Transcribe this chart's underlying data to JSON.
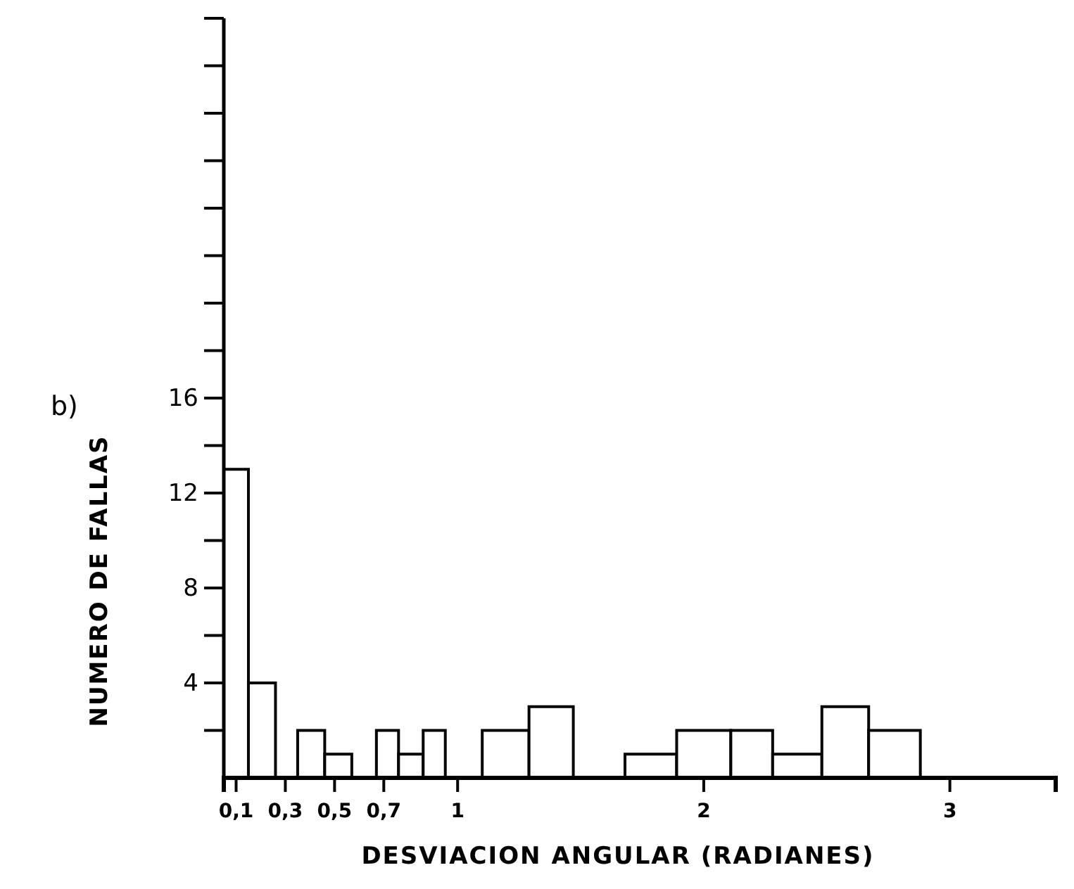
{
  "chart_data": {
    "type": "histogram",
    "xlabel": "DESVIACION ANGULAR (RADIANES)",
    "ylabel": "NUMERO DE FALLAS",
    "annotations": [
      "b)"
    ],
    "bins": [
      0.05,
      0.15,
      0.26,
      0.35,
      0.46,
      0.57,
      0.67,
      0.76,
      0.86,
      0.95,
      1.1,
      1.29,
      1.47,
      1.68,
      1.89,
      2.11,
      2.28,
      2.48,
      2.67,
      2.88
    ],
    "values": [
      13,
      4,
      0,
      2,
      1,
      0,
      2,
      1,
      2,
      0,
      2,
      3,
      0,
      1,
      2,
      2,
      1,
      3,
      2
    ],
    "color": "#ffffff",
    "xlim": [
      0.05,
      3.43
    ],
    "xticks": [
      {
        "value": 0.1,
        "label": "0,1"
      },
      {
        "value": 0.3,
        "label": "0,3"
      },
      {
        "value": 0.5,
        "label": "0,5"
      },
      {
        "value": 0.7,
        "label": "0,7"
      },
      {
        "value": 1,
        "label": "1"
      },
      {
        "value": 2,
        "label": "2"
      },
      {
        "value": 3,
        "label": "3"
      }
    ],
    "ylim": [
      0,
      32
    ],
    "yticks": [
      {
        "value": 2,
        "label": null
      },
      4,
      {
        "value": 6,
        "label": null
      },
      8,
      {
        "value": 10,
        "label": null
      },
      12,
      {
        "value": 14,
        "label": null
      },
      16,
      {
        "value": 18,
        "label": null
      },
      {
        "value": 20,
        "label": null
      },
      {
        "value": 22,
        "label": null
      },
      {
        "value": 24,
        "label": null
      },
      {
        "value": 26,
        "label": null
      },
      {
        "value": 28,
        "label": null
      },
      {
        "value": 30,
        "label": null
      },
      {
        "value": 32,
        "label": null
      }
    ],
    "grid": false
  }
}
